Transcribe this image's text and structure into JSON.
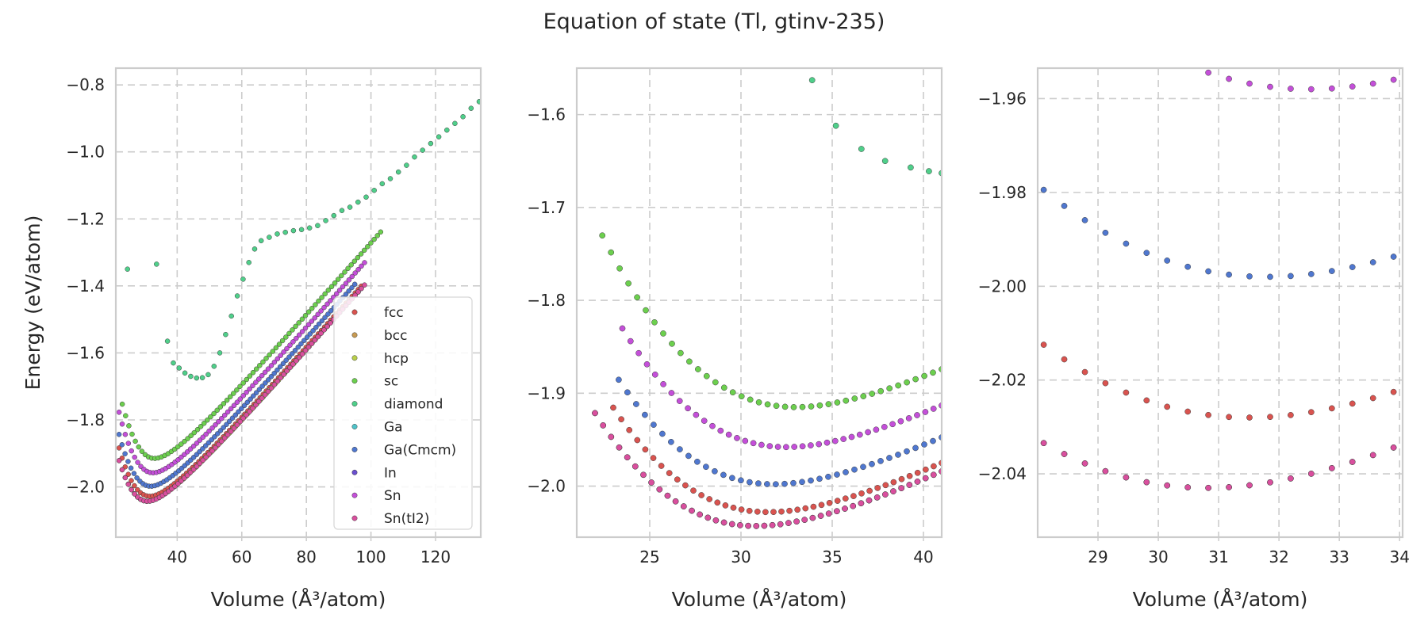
{
  "figure": {
    "suptitle": "Equation of state (Tl, gtinv-235)"
  },
  "structures": [
    {
      "name": "fcc",
      "color": "#d9534f"
    },
    {
      "name": "bcc",
      "color": "#c79a52"
    },
    {
      "name": "hcp",
      "color": "#b9cf4a"
    },
    {
      "name": "sc",
      "color": "#6ccf4e"
    },
    {
      "name": "diamond",
      "color": "#4fcf8a"
    },
    {
      "name": "Ga",
      "color": "#4fc3c9"
    },
    {
      "name": "Ga(Cmcm)",
      "color": "#4f77cf"
    },
    {
      "name": "In",
      "color": "#6a4fcf"
    },
    {
      "name": "Sn",
      "color": "#c44fd9"
    },
    {
      "name": "Sn(tI2)",
      "color": "#d94f9e"
    }
  ],
  "chart_data": [
    {
      "type": "scatter",
      "xlabel": "Volume (Å³/atom)",
      "ylabel": "Energy (eV/atom)",
      "xlim": [
        21,
        134
      ],
      "ylim": [
        -2.15,
        -0.75
      ],
      "xticks": [
        40,
        60,
        80,
        100,
        120
      ],
      "yticks": [
        -2.0,
        -1.8,
        -1.6,
        -1.4,
        -1.2,
        -1.0,
        -0.8
      ],
      "xtick_labels": [
        "40",
        "60",
        "80",
        "100",
        "120"
      ],
      "ytick_labels": [
        "−2.0",
        "−1.8",
        "−1.6",
        "−1.4",
        "−1.2",
        "−1.0",
        "−0.8"
      ],
      "grid": true,
      "legend": "lower-right",
      "series": [
        {
          "name": "fcc",
          "curve": {
            "v0": 31.5,
            "e0": -2.028,
            "k": 0.00025,
            "a1": -0.75,
            "slope": 0.011,
            "vmin": 22,
            "vmax": 97,
            "n": 80
          }
        },
        {
          "name": "hcp",
          "curve": {
            "v0": 30.8,
            "e0": -2.043,
            "k": 0.00025,
            "a1": -0.75,
            "slope": 0.0112,
            "vmin": 22,
            "vmax": 97,
            "n": 80
          }
        },
        {
          "name": "sc",
          "curve": {
            "v0": 33.0,
            "e0": -1.915,
            "k": 0.00025,
            "a1": -0.75,
            "slope": 0.0117,
            "vmin": 23,
            "vmax": 103,
            "n": 80
          }
        },
        {
          "name": "diamond",
          "points": [
            [
              24.6,
              -1.35
            ],
            [
              33.6,
              -1.335
            ],
            [
              37.0,
              -1.565
            ],
            [
              38.8,
              -1.63
            ],
            [
              40.6,
              -1.645
            ],
            [
              42.4,
              -1.66
            ],
            [
              44.2,
              -1.67
            ],
            [
              46.0,
              -1.675
            ],
            [
              47.8,
              -1.674
            ],
            [
              49.6,
              -1.665
            ],
            [
              51.4,
              -1.64
            ],
            [
              53.2,
              -1.6
            ],
            [
              55.0,
              -1.545
            ],
            [
              56.8,
              -1.49
            ],
            [
              58.6,
              -1.43
            ],
            [
              60.4,
              -1.38
            ],
            [
              62.2,
              -1.33
            ],
            [
              64.0,
              -1.29
            ],
            [
              66.0,
              -1.265
            ],
            [
              68.5,
              -1.255
            ],
            [
              71.0,
              -1.245
            ],
            [
              73.5,
              -1.24
            ],
            [
              76.0,
              -1.235
            ],
            [
              78.5,
              -1.232
            ],
            [
              81.0,
              -1.227
            ],
            [
              83.5,
              -1.22
            ],
            [
              86.0,
              -1.205
            ],
            [
              88.5,
              -1.19
            ],
            [
              91.0,
              -1.175
            ],
            [
              93.5,
              -1.165
            ],
            [
              96.0,
              -1.15
            ],
            [
              98.5,
              -1.135
            ],
            [
              101.0,
              -1.115
            ],
            [
              103.5,
              -1.095
            ],
            [
              106.0,
              -1.08
            ],
            [
              108.5,
              -1.06
            ],
            [
              111.0,
              -1.04
            ],
            [
              113.5,
              -1.015
            ],
            [
              116.0,
              -0.995
            ],
            [
              118.5,
              -0.975
            ],
            [
              121.0,
              -0.955
            ],
            [
              123.5,
              -0.935
            ],
            [
              126.0,
              -0.915
            ],
            [
              128.5,
              -0.895
            ],
            [
              131.0,
              -0.87
            ],
            [
              133.5,
              -0.85
            ]
          ]
        },
        {
          "name": "Ga(Cmcm)",
          "curve": {
            "v0": 31.8,
            "e0": -1.998,
            "k": 0.00025,
            "a1": -0.75,
            "slope": 0.0109,
            "vmin": 22,
            "vmax": 95,
            "n": 80
          }
        },
        {
          "name": "Sn",
          "curve": {
            "v0": 32.5,
            "e0": -1.958,
            "k": 0.00025,
            "a1": -0.75,
            "slope": 0.0115,
            "vmin": 22,
            "vmax": 98,
            "n": 80
          }
        },
        {
          "name": "Sn(tI2)",
          "curve": {
            "v0": 30.8,
            "e0": -2.043,
            "k": 0.00025,
            "a1": -0.75,
            "slope": 0.0118,
            "vmin": 22,
            "vmax": 98,
            "n": 80
          }
        }
      ]
    },
    {
      "type": "scatter",
      "xlabel": "Volume (Å³/atom)",
      "ylabel": "",
      "xlim": [
        21.0,
        41.0
      ],
      "ylim": [
        -2.055,
        -1.55
      ],
      "xticks": [
        25,
        30,
        35,
        40
      ],
      "yticks": [
        -2.0,
        -1.9,
        -1.8,
        -1.7,
        -1.6
      ],
      "xtick_labels": [
        "25",
        "30",
        "35",
        "40"
      ],
      "ytick_labels": [
        "−2.0",
        "−1.9",
        "−1.8",
        "−1.7",
        "−1.6"
      ],
      "grid": true,
      "series": [
        {
          "name": "fcc",
          "curve": {
            "v0": 31.5,
            "e0": -2.028,
            "k": 0.00025,
            "a1": -0.75,
            "slope": 0.011,
            "vmin": 23.0,
            "vmax": 41.0,
            "n": 42
          }
        },
        {
          "name": "hcp",
          "curve": {
            "v0": 30.8,
            "e0": -2.043,
            "k": 0.00025,
            "a1": -0.75,
            "slope": 0.0112,
            "vmin": 22.0,
            "vmax": 41.0,
            "n": 44
          }
        },
        {
          "name": "sc",
          "curve": {
            "v0": 33.0,
            "e0": -1.915,
            "k": 0.00025,
            "a1": -0.75,
            "slope": 0.0117,
            "vmin": 22.4,
            "vmax": 41.0,
            "n": 40
          }
        },
        {
          "name": "diamond",
          "points": [
            [
              33.9,
              -1.563
            ],
            [
              35.2,
              -1.612
            ],
            [
              36.6,
              -1.637
            ],
            [
              37.9,
              -1.65
            ],
            [
              39.3,
              -1.657
            ],
            [
              40.3,
              -1.661
            ],
            [
              41.0,
              -1.663
            ]
          ]
        },
        {
          "name": "Ga(Cmcm)",
          "curve": {
            "v0": 31.8,
            "e0": -1.998,
            "k": 0.00025,
            "a1": -0.75,
            "slope": 0.0109,
            "vmin": 23.3,
            "vmax": 41.0,
            "n": 38
          }
        },
        {
          "name": "Sn",
          "curve": {
            "v0": 32.5,
            "e0": -1.958,
            "k": 0.00025,
            "a1": -0.75,
            "slope": 0.0115,
            "vmin": 23.5,
            "vmax": 41.0,
            "n": 40
          }
        },
        {
          "name": "Sn(tI2)",
          "curve": {
            "v0": 30.8,
            "e0": -2.043,
            "k": 0.00025,
            "a1": -0.75,
            "slope": 0.0118,
            "vmin": 22.0,
            "vmax": 41.0,
            "n": 44
          }
        }
      ]
    },
    {
      "type": "scatter",
      "xlabel": "Volume (Å³/atom)",
      "ylabel": "",
      "xlim": [
        28.0,
        34.05
      ],
      "ylim": [
        -2.0535,
        -1.9535
      ],
      "xticks": [
        29,
        30,
        31,
        32,
        33,
        34
      ],
      "yticks": [
        -2.04,
        -2.02,
        -2.0,
        -1.98,
        -1.96
      ],
      "xtick_labels": [
        "29",
        "30",
        "31",
        "32",
        "33",
        "34"
      ],
      "ytick_labels": [
        "−2.04",
        "−2.02",
        "−2.00",
        "−1.98",
        "−1.96"
      ],
      "grid": true,
      "series": [
        {
          "name": "fcc",
          "curve": {
            "v0": 31.5,
            "e0": -2.028,
            "k": 0.00025,
            "a1": -0.75,
            "slope": 0.011,
            "vmin": 28.1,
            "vmax": 33.9,
            "n": 18
          }
        },
        {
          "name": "hcp",
          "curve": {
            "v0": 30.8,
            "e0": -2.043,
            "k": 0.00025,
            "a1": -0.75,
            "slope": 0.0112,
            "vmin": 28.1,
            "vmax": 33.9,
            "n": 18
          }
        },
        {
          "name": "Ga(Cmcm)",
          "curve": {
            "v0": 31.8,
            "e0": -1.998,
            "k": 0.00025,
            "a1": -0.75,
            "slope": 0.0109,
            "vmin": 28.1,
            "vmax": 33.9,
            "n": 18
          }
        },
        {
          "name": "Sn",
          "curve": {
            "v0": 32.5,
            "e0": -1.958,
            "k": 0.00025,
            "a1": -0.75,
            "slope": 0.0115,
            "vmin": 28.1,
            "vmax": 33.9,
            "n": 18
          }
        },
        {
          "name": "Sn(tI2)",
          "curve": {
            "v0": 30.8,
            "e0": -2.043,
            "k": 0.00025,
            "a1": -0.75,
            "slope": 0.0118,
            "vmin": 28.1,
            "vmax": 33.9,
            "n": 18
          }
        }
      ]
    }
  ]
}
